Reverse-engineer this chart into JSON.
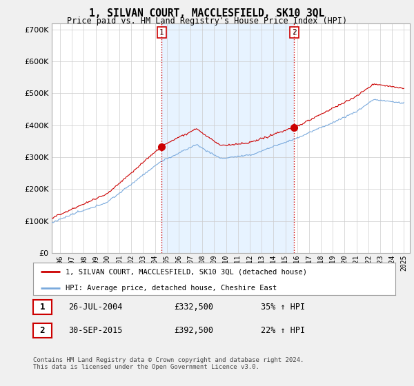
{
  "title": "1, SILVAN COURT, MACCLESFIELD, SK10 3QL",
  "subtitle": "Price paid vs. HM Land Registry's House Price Index (HPI)",
  "ylim": [
    0,
    720000
  ],
  "xlim_start": 1995.3,
  "xlim_end": 2025.5,
  "red_color": "#cc0000",
  "blue_color": "#7aaadd",
  "fill_color": "#ddeeff",
  "legend_label_red": "1, SILVAN COURT, MACCLESFIELD, SK10 3QL (detached house)",
  "legend_label_blue": "HPI: Average price, detached house, Cheshire East",
  "sale1_date": "26-JUL-2004",
  "sale1_price": "£332,500",
  "sale1_hpi": "35% ↑ HPI",
  "sale2_date": "30-SEP-2015",
  "sale2_price": "£392,500",
  "sale2_hpi": "22% ↑ HPI",
  "copyright_text": "Contains HM Land Registry data © Crown copyright and database right 2024.\nThis data is licensed under the Open Government Licence v3.0.",
  "sale1_year": 2004.57,
  "sale2_year": 2015.75,
  "sale1_price_val": 332500,
  "sale2_price_val": 392500,
  "background_color": "#f0f0f0"
}
